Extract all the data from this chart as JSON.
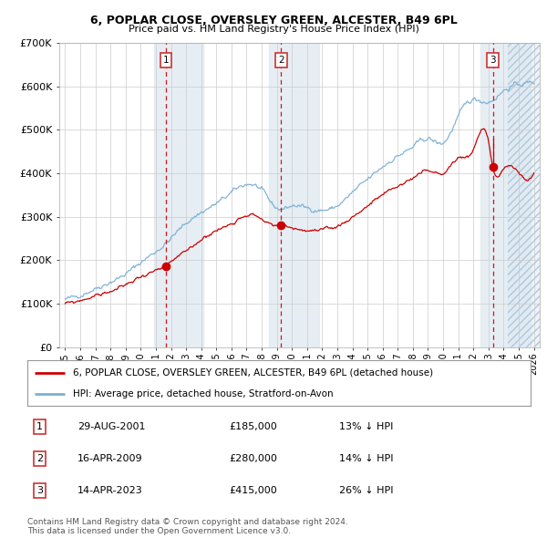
{
  "title": "6, POPLAR CLOSE, OVERSLEY GREEN, ALCESTER, B49 6PL",
  "subtitle": "Price paid vs. HM Land Registry's House Price Index (HPI)",
  "red_label": "6, POPLAR CLOSE, OVERSLEY GREEN, ALCESTER, B49 6PL (detached house)",
  "blue_label": "HPI: Average price, detached house, Stratford-on-Avon",
  "footnote1": "Contains HM Land Registry data © Crown copyright and database right 2024.",
  "footnote2": "This data is licensed under the Open Government Licence v3.0.",
  "transactions": [
    {
      "num": 1,
      "date": "29-AUG-2001",
      "price": "£185,000",
      "hpi": "13% ↓ HPI",
      "year": 2001.66
    },
    {
      "num": 2,
      "date": "16-APR-2009",
      "price": "£280,000",
      "hpi": "14% ↓ HPI",
      "year": 2009.29
    },
    {
      "num": 3,
      "date": "14-APR-2023",
      "price": "£415,000",
      "hpi": "26% ↓ HPI",
      "year": 2023.29
    }
  ],
  "transaction_prices": [
    185000,
    280000,
    415000
  ],
  "ylim": [
    0,
    700000
  ],
  "yticks": [
    0,
    100000,
    200000,
    300000,
    400000,
    500000,
    600000,
    700000
  ],
  "ytick_labels": [
    "£0",
    "£100K",
    "£200K",
    "£300K",
    "£400K",
    "£500K",
    "£600K",
    "£700K"
  ],
  "xstart": 1995,
  "xend": 2026,
  "red_color": "#cc0000",
  "blue_color": "#7ab0d4",
  "dashed_color": "#cc0000",
  "bg_color": "#dce8f0",
  "band_color": "#dce8f0",
  "hatch_color": "#c8d8e8",
  "grid_color": "#cccccc",
  "box_color": "#cc3333",
  "dot_color": "#cc0000"
}
